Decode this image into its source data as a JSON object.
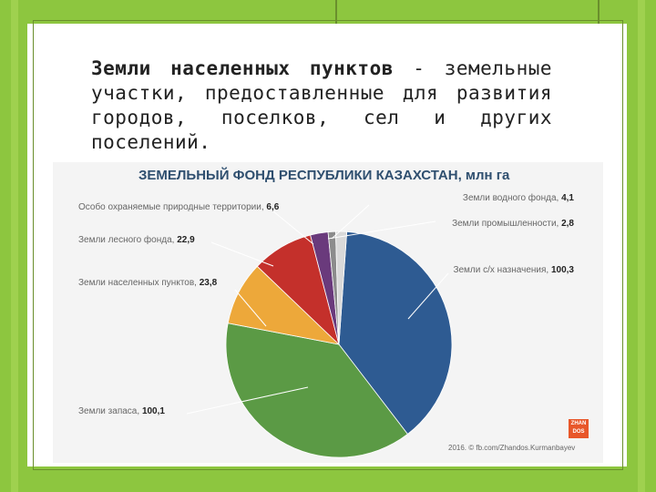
{
  "slide": {
    "intro_bold": "Земли населенных пунктов",
    "intro_rest": " - земельные участки, предоставленные для развития городов, поселков, сел и других поселений."
  },
  "chart_data": {
    "type": "pie",
    "title": "ЗЕМЕЛЬНЫЙ ФОНД РЕСПУБЛИКИ КАЗАХСТАН, млн га",
    "slices": [
      {
        "label": "Земли с/х назначения",
        "value": 100.3,
        "display": "100,3",
        "color": "#2e5b92"
      },
      {
        "label": "Земли запаса",
        "value": 100.1,
        "display": "100,1",
        "color": "#5b9a45"
      },
      {
        "label": "Земли населенных пунктов",
        "value": 23.8,
        "display": "23,8",
        "color": "#eda83a"
      },
      {
        "label": "Земли лесного фонда",
        "value": 22.9,
        "display": "22,9",
        "color": "#c4302b"
      },
      {
        "label": "Особо охраняемые природные территории",
        "value": 6.6,
        "display": "6,6",
        "color": "#6a3a7c"
      },
      {
        "label": "Земли промышленности",
        "value": 2.8,
        "display": "2,8",
        "color": "#8c8c8c"
      },
      {
        "label": "Земли водного фонда",
        "value": 4.1,
        "display": "4,1",
        "color": "#d9d9d9"
      }
    ],
    "credit": "2016. © fb.com/Zhandos.Kurmanbayev",
    "logo_text": "ZHAN DOS"
  }
}
